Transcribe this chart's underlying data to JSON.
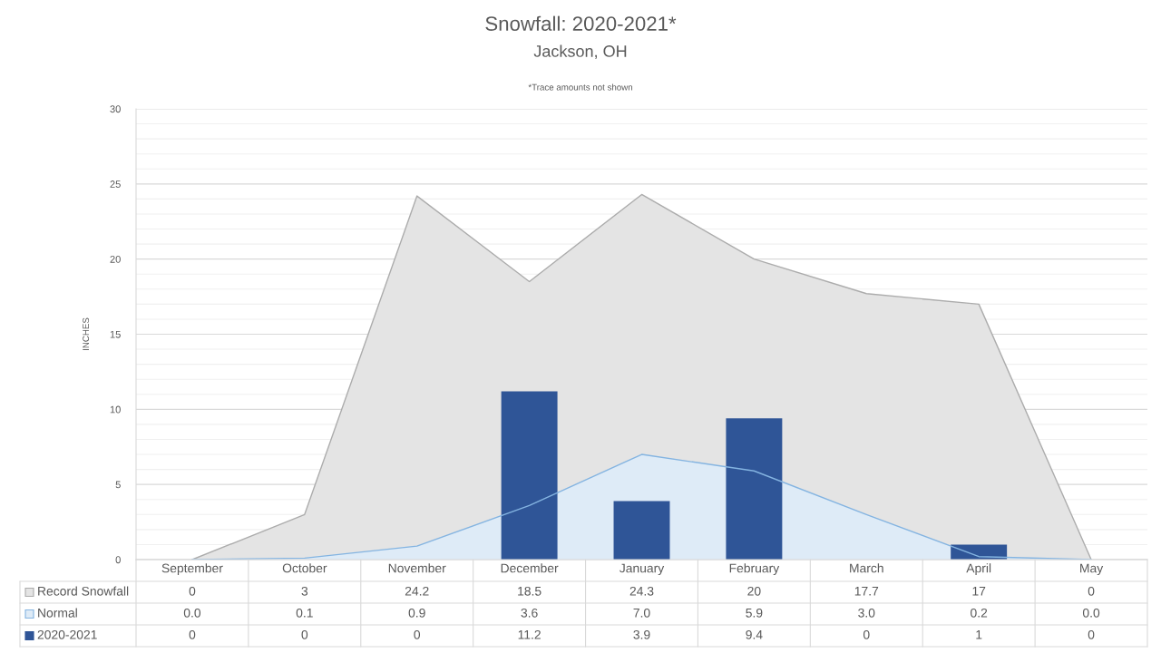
{
  "chart_data": {
    "type": "area",
    "title": "Snowfall: 2020-2021*",
    "subtitle": "Jackson, OH",
    "annotations": [
      "*Trace amounts not shown"
    ],
    "ylabel": "INCHES",
    "categories": [
      "September",
      "October",
      "November",
      "December",
      "January",
      "February",
      "March",
      "April",
      "May"
    ],
    "series": [
      {
        "name": "Record Snowfall",
        "color": "#e4e4e4",
        "values": [
          0,
          3,
          24.2,
          18.5,
          24.3,
          20,
          17.7,
          17,
          0
        ],
        "value_labels": [
          "0",
          "3",
          "24.2",
          "18.5",
          "24.3",
          "20",
          "17.7",
          "17",
          "0"
        ]
      },
      {
        "name": "Normal",
        "color": "#deebf7",
        "values": [
          0.0,
          0.1,
          0.9,
          3.6,
          7.0,
          5.9,
          3.0,
          0.2,
          0.0
        ],
        "value_labels": [
          "0.0",
          "0.1",
          "0.9",
          "3.6",
          "7.0",
          "5.9",
          "3.0",
          "0.2",
          "0.0"
        ]
      },
      {
        "name": "2020-2021",
        "type": "bar",
        "color": "#2f5597",
        "values": [
          0,
          0,
          0,
          11.2,
          3.9,
          9.4,
          0,
          1,
          0
        ],
        "value_labels": [
          "0",
          "0",
          "0",
          "11.2",
          "3.9",
          "9.4",
          "0",
          "1",
          "0"
        ]
      }
    ],
    "ylim": [
      0,
      30
    ],
    "yticks": [
      0,
      {
        "value": 1,
        "label": null
      },
      {
        "value": 2,
        "label": null
      },
      {
        "value": 3,
        "label": null
      },
      {
        "value": 4,
        "label": null
      },
      5,
      {
        "value": 6,
        "label": null
      },
      {
        "value": 7,
        "label": null
      },
      {
        "value": 8,
        "label": null
      },
      {
        "value": 9,
        "label": null
      },
      10,
      {
        "value": 11,
        "label": null
      },
      {
        "value": 12,
        "label": null
      },
      {
        "value": 13,
        "label": null
      },
      {
        "value": 14,
        "label": null
      },
      15,
      {
        "value": 16,
        "label": null
      },
      {
        "value": 17,
        "label": null
      },
      {
        "value": 18,
        "label": null
      },
      {
        "value": 19,
        "label": null
      },
      20,
      {
        "value": 21,
        "label": null
      },
      {
        "value": 22,
        "label": null
      },
      {
        "value": 23,
        "label": null
      },
      {
        "value": 24,
        "label": null
      },
      25,
      {
        "value": 26,
        "label": null
      },
      {
        "value": 27,
        "label": null
      },
      {
        "value": 28,
        "label": null
      },
      {
        "value": 29,
        "label": null
      },
      30
    ],
    "grid": "y",
    "legend": "bottom"
  }
}
